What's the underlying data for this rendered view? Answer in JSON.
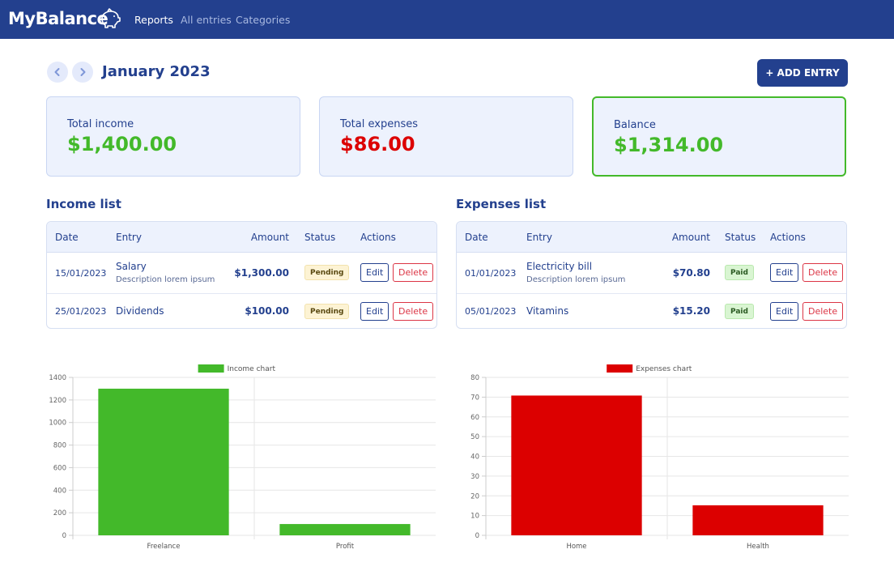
{
  "navbar": {
    "brand": "MyBalance",
    "brand_icon": "piggy-bank-icon",
    "links": [
      {
        "label": "Reports",
        "active": true
      },
      {
        "label": "All entries",
        "active": false
      },
      {
        "label": "Categories",
        "active": false
      }
    ]
  },
  "period": {
    "title": "January 2023",
    "prev_icon": "chevron-left-icon",
    "next_icon": "chevron-right-icon"
  },
  "add_entry_label": "+ ADD ENTRY",
  "summary": {
    "income": {
      "label": "Total income",
      "value": "$1,400.00"
    },
    "expenses": {
      "label": "Total expenses",
      "value": "$86.00"
    },
    "balance": {
      "label": "Balance",
      "value": "$1,314.00"
    }
  },
  "income_list": {
    "title": "Income list",
    "headers": [
      "Date",
      "Entry",
      "Amount",
      "Status",
      "Actions"
    ],
    "rows": [
      {
        "date": "15/01/2023",
        "entry": "Salary",
        "description": "Description lorem ipsum",
        "amount": "$1,300.00",
        "status": "Pending",
        "edit": "Edit",
        "delete": "Delete"
      },
      {
        "date": "25/01/2023",
        "entry": "Dividends",
        "description": "",
        "amount": "$100.00",
        "status": "Pending",
        "edit": "Edit",
        "delete": "Delete"
      }
    ]
  },
  "expenses_list": {
    "title": "Expenses list",
    "headers": [
      "Date",
      "Entry",
      "Amount",
      "Status",
      "Actions"
    ],
    "rows": [
      {
        "date": "01/01/2023",
        "entry": "Electricity bill",
        "description": "Description lorem ipsum",
        "amount": "$70.80",
        "status": "Paid",
        "edit": "Edit",
        "delete": "Delete"
      },
      {
        "date": "05/01/2023",
        "entry": "Vitamins",
        "description": "",
        "amount": "$15.20",
        "status": "Paid",
        "edit": "Edit",
        "delete": "Delete"
      }
    ]
  },
  "colors": {
    "primary": "#23408e",
    "income": "#43b92a",
    "expense": "#dc0000"
  },
  "chart_data": [
    {
      "type": "bar",
      "legend": "Income chart",
      "legend_position": "top",
      "color": "#43b92a",
      "categories": [
        "Freelance",
        "Profit"
      ],
      "values": [
        1300,
        100
      ],
      "ylim": [
        0,
        1400
      ],
      "yticks": [
        0,
        200,
        400,
        600,
        800,
        1000,
        1200,
        1400
      ],
      "grid": true
    },
    {
      "type": "bar",
      "legend": "Expenses chart",
      "legend_position": "top",
      "color": "#dc0000",
      "categories": [
        "Home",
        "Health"
      ],
      "values": [
        70.8,
        15.2
      ],
      "ylim": [
        0,
        80
      ],
      "yticks": [
        0,
        10,
        20,
        30,
        40,
        50,
        60,
        70,
        80
      ],
      "grid": true
    }
  ]
}
